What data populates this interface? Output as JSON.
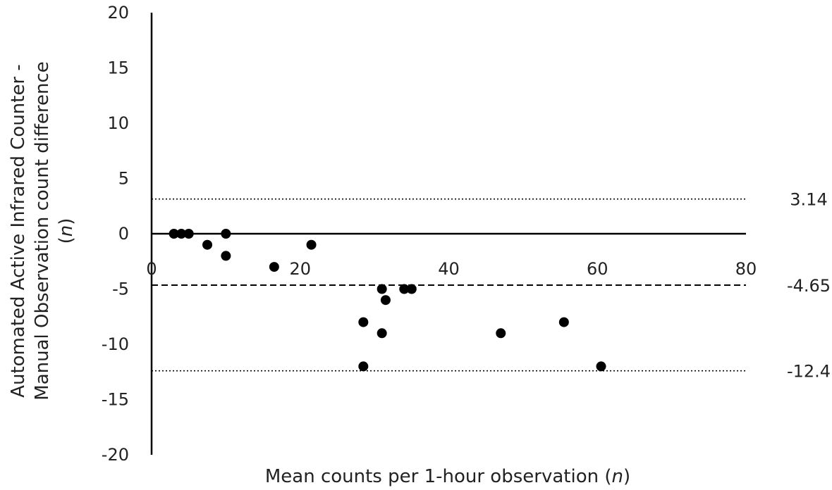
{
  "chart_data": {
    "type": "scatter",
    "title": "",
    "xlabel": "Mean counts per 1-hour observation",
    "xlabel_unit": "n",
    "ylabel_line1": "Automated Active Infrared Counter -",
    "ylabel_line2": "Manual Observation count difference",
    "ylabel_unit": "n",
    "xlim": [
      0,
      80
    ],
    "ylim": [
      -20,
      20
    ],
    "x_ticks": [
      0,
      20,
      40,
      60,
      80
    ],
    "y_ticks": [
      20,
      15,
      10,
      5,
      0,
      -5,
      -10,
      -15,
      -20
    ],
    "grid": false,
    "legend": "none",
    "marker_color": "#000000",
    "points": [
      {
        "x": 3,
        "y": 0
      },
      {
        "x": 4,
        "y": 0
      },
      {
        "x": 5,
        "y": 0
      },
      {
        "x": 10,
        "y": 0
      },
      {
        "x": 7.5,
        "y": -1
      },
      {
        "x": 10,
        "y": -2
      },
      {
        "x": 16.5,
        "y": -3
      },
      {
        "x": 21.5,
        "y": -1
      },
      {
        "x": 28.5,
        "y": -8
      },
      {
        "x": 28.5,
        "y": -12
      },
      {
        "x": 31,
        "y": -5
      },
      {
        "x": 31,
        "y": -9
      },
      {
        "x": 31.5,
        "y": -6
      },
      {
        "x": 34,
        "y": -5
      },
      {
        "x": 35,
        "y": -5
      },
      {
        "x": 47,
        "y": -9
      },
      {
        "x": 55.5,
        "y": -8
      },
      {
        "x": 60.5,
        "y": -12
      }
    ],
    "reference_lines": [
      {
        "name": "upper-limit",
        "y": 3.14,
        "label": "3.14",
        "style": "dotted"
      },
      {
        "name": "mean-difference",
        "y": -4.65,
        "label": "-4.65",
        "style": "dashed"
      },
      {
        "name": "lower-limit",
        "y": -12.4,
        "label": "-12.4",
        "style": "dotted"
      }
    ]
  }
}
